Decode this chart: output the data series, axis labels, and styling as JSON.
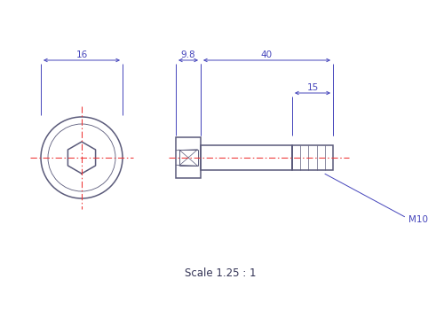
{
  "bg_color": "#ffffff",
  "line_color": "#5a5a7a",
  "dim_color": "#4444bb",
  "center_color": "#ee3333",
  "scale_text": "Scale 1.25 : 1",
  "dim_16": "16",
  "dim_9p8": "9.8",
  "dim_40": "40",
  "dim_15": "15",
  "label_m10": "M10",
  "figsize": [
    5.0,
    3.5
  ],
  "dpi": 100
}
